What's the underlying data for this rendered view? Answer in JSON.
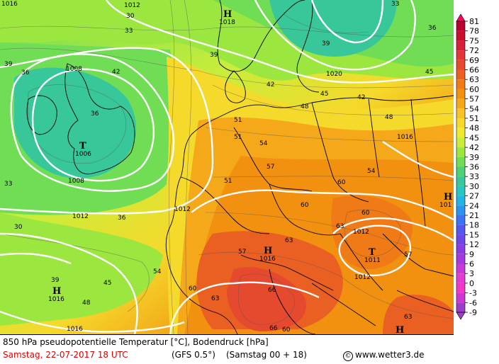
{
  "footer": {
    "line1": "850 hPa pseudopotentielle Temperatur [°C], Bodendruck [hPa]",
    "date": "Samstag, 22-07-2017  18 UTC",
    "model": "(GFS 0.5°)",
    "run": "(Samstag 00 + 18)",
    "copyright_symbol": "©",
    "site": "www.wetter3.de"
  },
  "legend": {
    "ticks": [
      "81",
      "78",
      "75",
      "72",
      "69",
      "66",
      "63",
      "60",
      "57",
      "54",
      "51",
      "48",
      "45",
      "42",
      "39",
      "36",
      "33",
      "30",
      "27",
      "24",
      "21",
      "18",
      "15",
      "12",
      "9",
      "6",
      "3",
      "0",
      "-3",
      "-6",
      "-9"
    ],
    "colors": [
      "#ff0066",
      "#b8002e",
      "#c8102e",
      "#d6203a",
      "#e13737",
      "#e54a2e",
      "#ea5f22",
      "#ef7a16",
      "#f29010",
      "#f5a81a",
      "#f7c22a",
      "#f5d92b",
      "#eeea30",
      "#c8ed3a",
      "#9be63f",
      "#71dd55",
      "#4fd075",
      "#38c79a",
      "#25c6c4",
      "#22b4e2",
      "#2a94ee",
      "#3b74f0",
      "#5556ee",
      "#6e45e6",
      "#8a3ee2",
      "#a63bdd",
      "#c53ad8",
      "#e33cd0",
      "#f03ac7",
      "#cd38d1",
      "#9b3fc8"
    ]
  },
  "pressure_centers": [
    {
      "type": "H",
      "value": "1018"
    },
    {
      "type": "T",
      "value": "1006"
    },
    {
      "type": "H",
      "value": "1016"
    },
    {
      "type": "T",
      "value": "1011"
    },
    {
      "type": "H",
      "value": "1016"
    },
    {
      "type": "H",
      "value": "101"
    },
    {
      "type": "H",
      "value": ""
    }
  ],
  "isobar_labels": [
    "1008",
    "1008",
    "1012",
    "1012",
    "1016",
    "1020",
    "1016",
    "1012",
    "1012",
    "1012",
    "1016"
  ],
  "theta_labels": [
    "30",
    "33",
    "36",
    "36",
    "39",
    "39",
    "42",
    "42",
    "45",
    "48",
    "51",
    "54",
    "57",
    "60",
    "63",
    "66",
    "57",
    "60",
    "63",
    "60",
    "54",
    "51",
    "48",
    "45",
    "42",
    "39",
    "36",
    "33",
    "30",
    "33",
    "36",
    "39",
    "60",
    "63",
    "57",
    "54",
    "51",
    "45",
    "48",
    "60",
    "63",
    "66"
  ]
}
